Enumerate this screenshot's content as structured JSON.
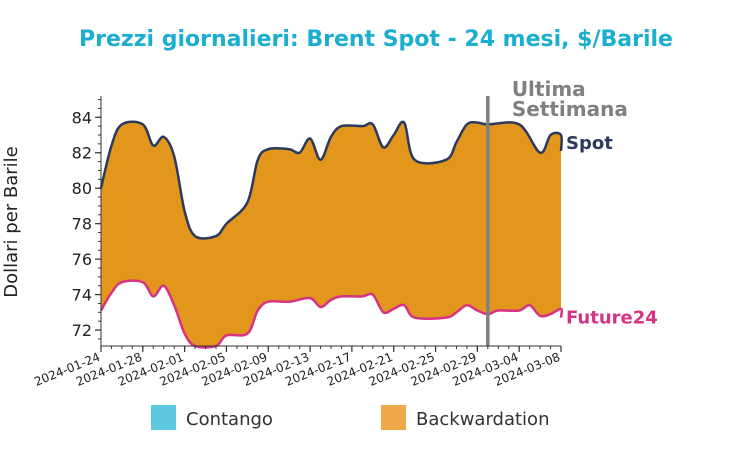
{
  "chart_data": {
    "type": "area",
    "title": "Prezzi giornalieri: Brent Spot - 24 mesi, $/Barile",
    "xlabel": "",
    "ylabel": "Dollari per Barile",
    "x_ticks": [
      "2024-01-24",
      "2024-01-28",
      "2024-02-01",
      "2024-02-05",
      "2024-02-09",
      "2024-02-13",
      "2024-02-17",
      "2024-02-21",
      "2024-02-25",
      "2024-02-29",
      "2024-03-04",
      "2024-03-08"
    ],
    "y_ticks": [
      72,
      74,
      76,
      78,
      80,
      82,
      84
    ],
    "xlim": [
      "2024-01-24",
      "2024-03-08"
    ],
    "ylim": [
      71.1,
      85.2
    ],
    "series": [
      {
        "name": "Spot",
        "color": "#2b3a5c",
        "points": [
          [
            "2024-01-24",
            80.0
          ],
          [
            "2024-01-25",
            82.4
          ],
          [
            "2024-01-26",
            83.6
          ],
          [
            "2024-01-28",
            83.6
          ],
          [
            "2024-01-29",
            82.4
          ],
          [
            "2024-01-30",
            82.9
          ],
          [
            "2024-01-31",
            81.8
          ],
          [
            "2024-02-01",
            78.7
          ],
          [
            "2024-02-02",
            77.3
          ],
          [
            "2024-02-04",
            77.3
          ],
          [
            "2024-02-05",
            78.0
          ],
          [
            "2024-02-07",
            79.2
          ],
          [
            "2024-02-08",
            81.6
          ],
          [
            "2024-02-09",
            82.2
          ],
          [
            "2024-02-11",
            82.2
          ],
          [
            "2024-02-12",
            82.0
          ],
          [
            "2024-02-13",
            82.8
          ],
          [
            "2024-02-14",
            81.6
          ],
          [
            "2024-02-15",
            82.9
          ],
          [
            "2024-02-16",
            83.5
          ],
          [
            "2024-02-18",
            83.5
          ],
          [
            "2024-02-19",
            83.6
          ],
          [
            "2024-02-20",
            82.3
          ],
          [
            "2024-02-21",
            83.0
          ],
          [
            "2024-02-22",
            83.7
          ],
          [
            "2024-02-23",
            81.6
          ],
          [
            "2024-02-26",
            81.6
          ],
          [
            "2024-02-27",
            82.6
          ],
          [
            "2024-02-28",
            83.6
          ],
          [
            "2024-02-29",
            83.7
          ],
          [
            "2024-03-01",
            83.6
          ],
          [
            "2024-03-04",
            83.6
          ],
          [
            "2024-03-06",
            82.0
          ],
          [
            "2024-03-07",
            83.0
          ],
          [
            "2024-03-08",
            83.0
          ],
          [
            "2024-03-09",
            82.1
          ]
        ]
      },
      {
        "name": "Future24",
        "color": "#d63384",
        "points": [
          [
            "2024-01-24",
            73.1
          ],
          [
            "2024-01-25",
            74.1
          ],
          [
            "2024-01-26",
            74.7
          ],
          [
            "2024-01-28",
            74.7
          ],
          [
            "2024-01-29",
            73.9
          ],
          [
            "2024-01-30",
            74.5
          ],
          [
            "2024-01-31",
            73.4
          ],
          [
            "2024-02-01",
            71.8
          ],
          [
            "2024-02-02",
            71.1
          ],
          [
            "2024-02-04",
            71.1
          ],
          [
            "2024-02-05",
            71.7
          ],
          [
            "2024-02-07",
            71.8
          ],
          [
            "2024-02-08",
            73.1
          ],
          [
            "2024-02-09",
            73.6
          ],
          [
            "2024-02-11",
            73.6
          ],
          [
            "2024-02-13",
            73.8
          ],
          [
            "2024-02-14",
            73.3
          ],
          [
            "2024-02-15",
            73.7
          ],
          [
            "2024-02-16",
            73.9
          ],
          [
            "2024-02-18",
            73.9
          ],
          [
            "2024-02-19",
            74.0
          ],
          [
            "2024-02-20",
            73.0
          ],
          [
            "2024-02-21",
            73.2
          ],
          [
            "2024-02-22",
            73.4
          ],
          [
            "2024-02-23",
            72.7
          ],
          [
            "2024-02-26",
            72.7
          ],
          [
            "2024-02-27",
            73.0
          ],
          [
            "2024-02-28",
            73.4
          ],
          [
            "2024-02-29",
            73.1
          ],
          [
            "2024-03-01",
            72.9
          ],
          [
            "2024-03-02",
            73.1
          ],
          [
            "2024-03-04",
            73.1
          ],
          [
            "2024-03-05",
            73.4
          ],
          [
            "2024-03-06",
            72.8
          ],
          [
            "2024-03-07",
            72.9
          ],
          [
            "2024-03-08",
            73.2
          ],
          [
            "2024-03-09",
            72.7
          ]
        ]
      }
    ],
    "fill_between": {
      "backwardation_color": "#e3961c",
      "contango_color": "#5bc8e0"
    },
    "marker_line": {
      "x": "2024-03-01",
      "label_lines": [
        "Ultima",
        "Settimana"
      ],
      "color": "#808080"
    },
    "legend": {
      "placement": "bottom",
      "items": [
        {
          "label": "Contango",
          "color": "#5bc8e0"
        },
        {
          "label": "Backwardation",
          "color": "#eda84a"
        }
      ]
    },
    "grid": false
  },
  "colors": {
    "title": "#1aaed1",
    "axis": "#333333"
  }
}
